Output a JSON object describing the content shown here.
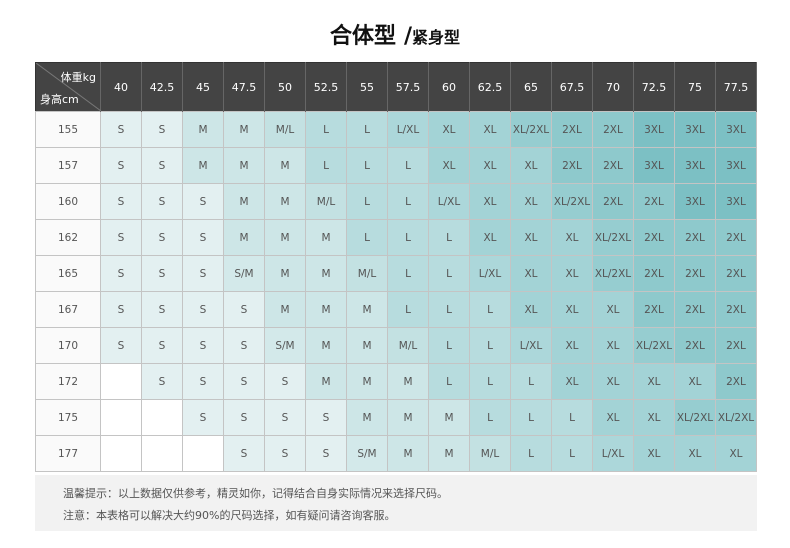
{
  "title": {
    "main": "合体型",
    "slash": "/",
    "sub": "紧身型"
  },
  "header": {
    "weight_label": "体重kg",
    "height_label": "身高cm",
    "weights": [
      "40",
      "42.5",
      "45",
      "47.5",
      "50",
      "52.5",
      "55",
      "57.5",
      "60",
      "62.5",
      "65",
      "67.5",
      "70",
      "72.5",
      "75",
      "77.5"
    ]
  },
  "rows": [
    {
      "height": "155",
      "sizes": [
        "S",
        "S",
        "M",
        "M",
        "M/L",
        "L",
        "L",
        "L/XL",
        "XL",
        "XL",
        "XL/2XL",
        "2XL",
        "2XL",
        "3XL",
        "3XL",
        "3XL"
      ]
    },
    {
      "height": "157",
      "sizes": [
        "S",
        "S",
        "M",
        "M",
        "M",
        "L",
        "L",
        "L",
        "XL",
        "XL",
        "XL",
        "2XL",
        "2XL",
        "3XL",
        "3XL",
        "3XL"
      ]
    },
    {
      "height": "160",
      "sizes": [
        "S",
        "S",
        "S",
        "M",
        "M",
        "M/L",
        "L",
        "L",
        "L/XL",
        "XL",
        "XL",
        "XL/2XL",
        "2XL",
        "2XL",
        "3XL",
        "3XL"
      ]
    },
    {
      "height": "162",
      "sizes": [
        "S",
        "S",
        "S",
        "M",
        "M",
        "M",
        "L",
        "L",
        "L",
        "XL",
        "XL",
        "XL",
        "XL/2XL",
        "2XL",
        "2XL",
        "2XL"
      ]
    },
    {
      "height": "165",
      "sizes": [
        "S",
        "S",
        "S",
        "S/M",
        "M",
        "M",
        "M/L",
        "L",
        "L",
        "L/XL",
        "XL",
        "XL",
        "XL/2XL",
        "2XL",
        "2XL",
        "2XL"
      ]
    },
    {
      "height": "167",
      "sizes": [
        "S",
        "S",
        "S",
        "S",
        "M",
        "M",
        "M",
        "L",
        "L",
        "L",
        "XL",
        "XL",
        "XL",
        "2XL",
        "2XL",
        "2XL"
      ]
    },
    {
      "height": "170",
      "sizes": [
        "S",
        "S",
        "S",
        "S",
        "S/M",
        "M",
        "M",
        "M/L",
        "L",
        "L",
        "L/XL",
        "XL",
        "XL",
        "XL/2XL",
        "2XL",
        "2XL"
      ]
    },
    {
      "height": "172",
      "sizes": [
        "",
        "S",
        "S",
        "S",
        "S",
        "M",
        "M",
        "M",
        "L",
        "L",
        "L",
        "XL",
        "XL",
        "XL",
        "XL",
        "2XL"
      ]
    },
    {
      "height": "175",
      "sizes": [
        "",
        "",
        "S",
        "S",
        "S",
        "S",
        "M",
        "M",
        "M",
        "L",
        "L",
        "L",
        "XL",
        "XL",
        "XL/2XL",
        "XL/2XL"
      ]
    },
    {
      "height": "177",
      "sizes": [
        "",
        "",
        "",
        "S",
        "S",
        "S",
        "S/M",
        "M",
        "M",
        "M/L",
        "L",
        "L",
        "L/XL",
        "XL",
        "XL",
        "XL"
      ]
    }
  ],
  "size_colors": {
    "S": "#e3f0f1",
    "S/M": "#d3e9ea",
    "M": "#cde6e7",
    "M/L": "#c3e1e2",
    "L": "#b7dcde",
    "L/XL": "#acd7da",
    "XL": "#a3d3d6",
    "XL/2XL": "#96cdd0",
    "2XL": "#8ec9cc",
    "3XL": "#7cc0c4",
    "empty": "#ffffff"
  },
  "notes": [
    "温馨提示：以上数据仅供参考，精灵如你，记得结合自身实际情况来选择尺码。",
    "注意：本表格可以解决大约90%的尺码选择，如有疑问请咨询客服。"
  ]
}
